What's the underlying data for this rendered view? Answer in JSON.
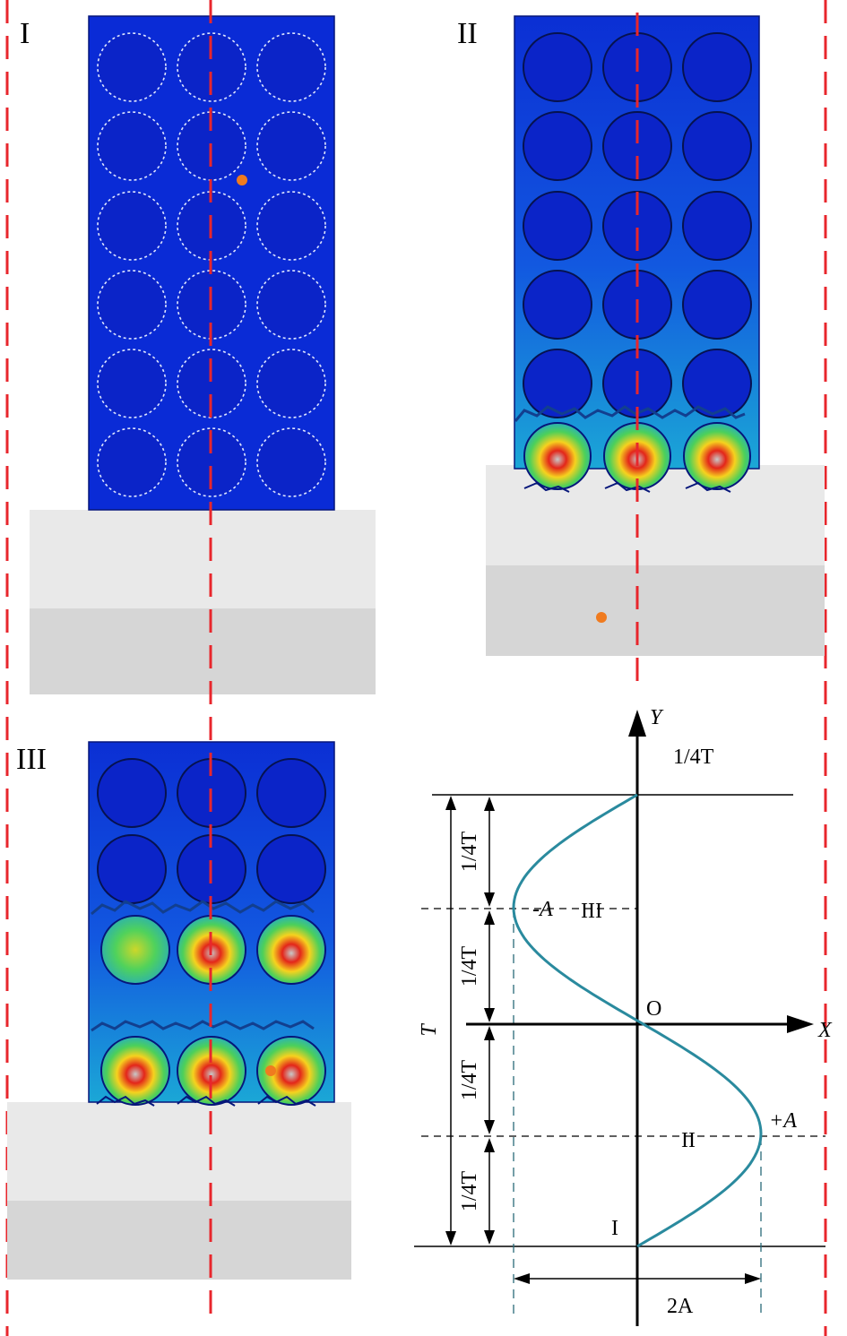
{
  "panels": {
    "p1": {
      "label": "I"
    },
    "p2": {
      "label": "II"
    },
    "p3": {
      "label": "III"
    }
  },
  "graph": {
    "y_axis": "Y",
    "x_axis": "X",
    "origin": "O",
    "top_label": "1/4T",
    "quarter_label": "1/4T",
    "period_label": "T",
    "minus_a": "-A",
    "plus_a": "+A",
    "two_a": "2A",
    "point_1": "I",
    "point_2": "II",
    "point_3": "III"
  },
  "colors": {
    "dashed_centerline": "#e8262c",
    "panel_blue": "#0a2bd6",
    "curve": "#2a8a9e",
    "plate_light": "#e9e9e9",
    "plate_dark": "#d6d6d6",
    "marker": "#f07b1f"
  }
}
